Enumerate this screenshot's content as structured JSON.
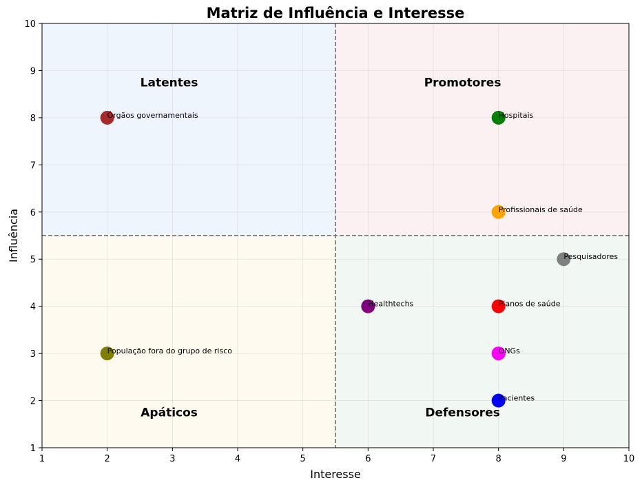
{
  "chart_data": {
    "type": "scatter",
    "title": "Matriz de Influência e Interesse",
    "xlabel": "Interesse",
    "ylabel": "Influência",
    "xlim": [
      1,
      10
    ],
    "ylim": [
      1,
      10
    ],
    "xticks": [
      "1",
      "2",
      "3",
      "4",
      "5",
      "6",
      "7",
      "8",
      "9",
      "10"
    ],
    "yticks": [
      "1",
      "2",
      "3",
      "4",
      "5",
      "6",
      "7",
      "8",
      "9",
      "10"
    ],
    "grid": true,
    "divider": {
      "x": 5.5,
      "y": 5.5
    },
    "quadrants": [
      {
        "label": "Latentes",
        "x": 2.95,
        "y": 8.75,
        "x_range": [
          1,
          5.5
        ],
        "y_range": [
          5.5,
          10
        ],
        "color": "#eef5fd"
      },
      {
        "label": "Promotores",
        "x": 7.45,
        "y": 8.75,
        "x_range": [
          5.5,
          10
        ],
        "y_range": [
          5.5,
          10
        ],
        "color": "#fbf0f2"
      },
      {
        "label": "Apáticos",
        "x": 2.95,
        "y": 1.75,
        "x_range": [
          1,
          5.5
        ],
        "y_range": [
          1,
          5.5
        ],
        "color": "#fefaef"
      },
      {
        "label": "Defensores",
        "x": 7.45,
        "y": 1.75,
        "x_range": [
          5.5,
          10
        ],
        "y_range": [
          1,
          5.5
        ],
        "color": "#f1f7f2"
      }
    ],
    "points": [
      {
        "label": "Órgãos governamentais",
        "x": 2,
        "y": 8,
        "color": "#a52a2a"
      },
      {
        "label": "Hospitais",
        "x": 8,
        "y": 8,
        "color": "#008000"
      },
      {
        "label": "Profissionais de saúde",
        "x": 8,
        "y": 6,
        "color": "#ffa500"
      },
      {
        "label": "Pesquisadores",
        "x": 9,
        "y": 5,
        "color": "#808080"
      },
      {
        "label": "Healthtechs",
        "x": 6,
        "y": 4,
        "color": "#800080"
      },
      {
        "label": "Planos de saúde",
        "x": 8,
        "y": 4,
        "color": "#ff0000"
      },
      {
        "label": "População fora do grupo de risco",
        "x": 2,
        "y": 3,
        "color": "#808000"
      },
      {
        "label": "ONGs",
        "x": 8,
        "y": 3,
        "color": "#ff00ff"
      },
      {
        "label": "Pacientes",
        "x": 8,
        "y": 2,
        "color": "#0000ff"
      }
    ]
  }
}
